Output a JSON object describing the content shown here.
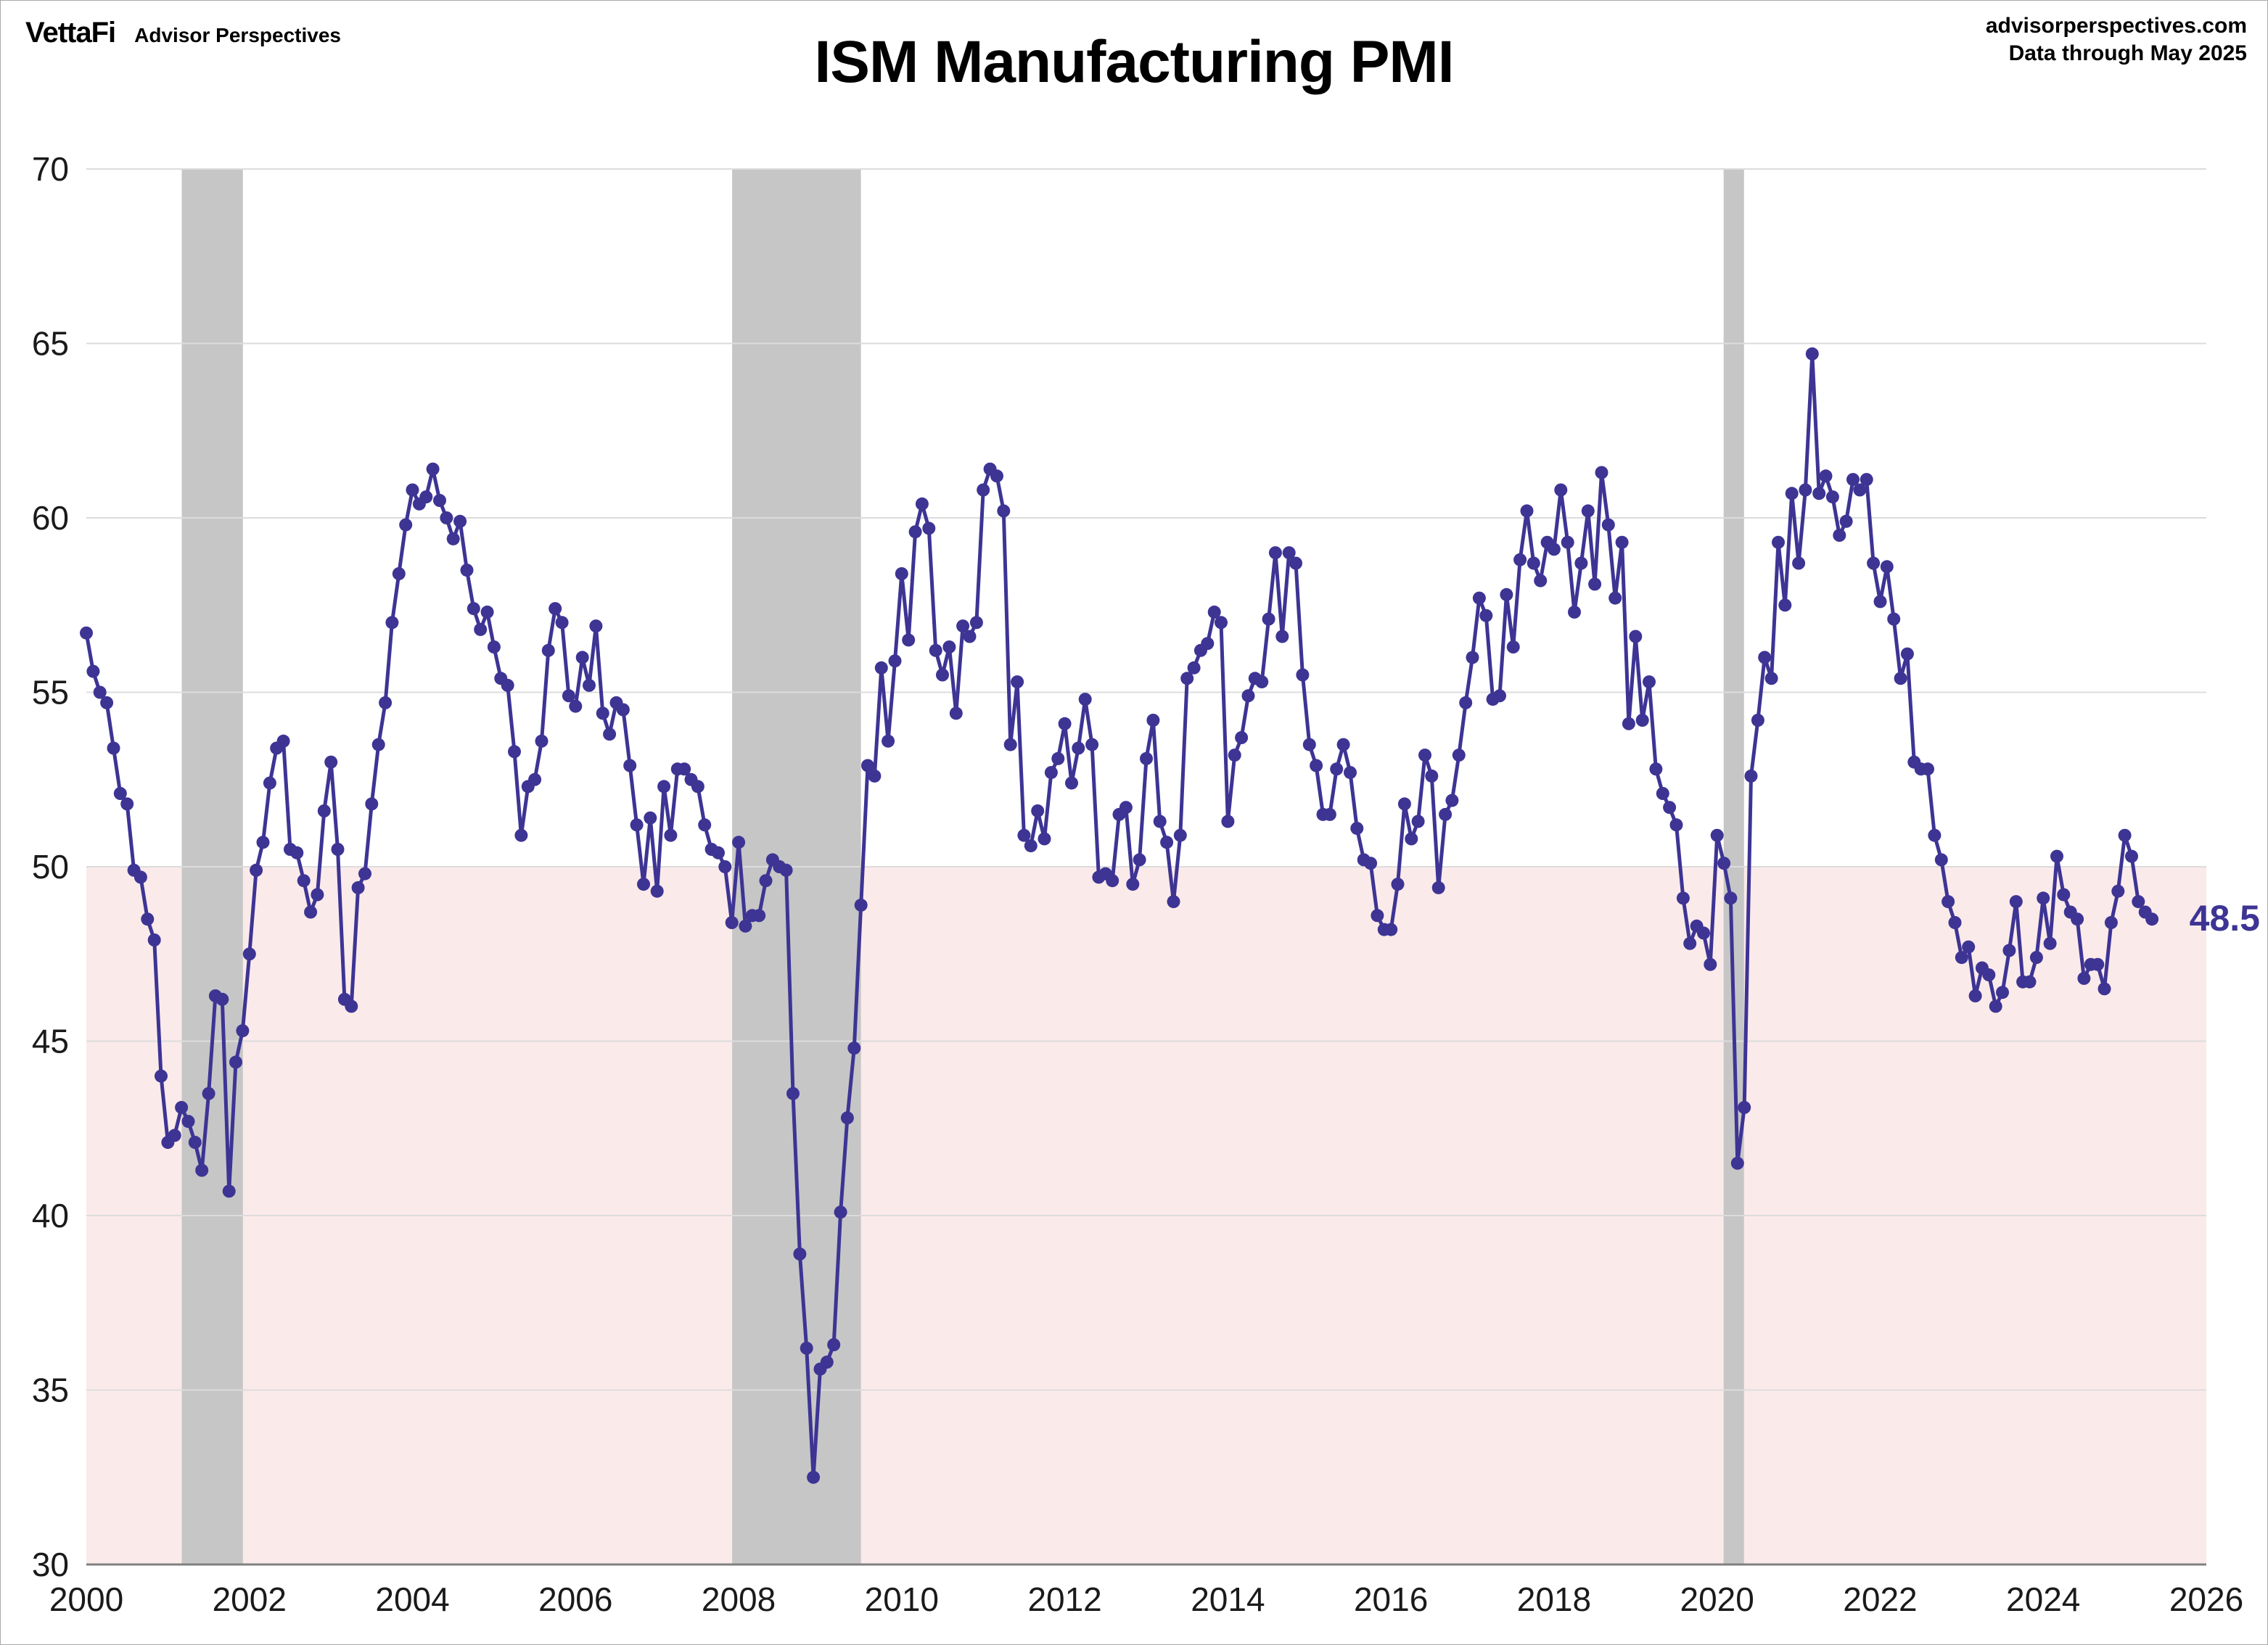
{
  "header": {
    "logo_primary": "VettaFi",
    "logo_secondary": "Advisor Perspectives",
    "source_line1": "advisorperspectives.com",
    "source_line2": "Data through May 2025"
  },
  "chart_data": {
    "type": "line",
    "title": "ISM Manufacturing PMI",
    "series_name": "ISM Manufacturing PMI",
    "frequency": "monthly",
    "start_year": 2000,
    "start_month": 1,
    "end_label": "May 2025",
    "last_value_label": "48.5",
    "xlim": [
      2000,
      2026
    ],
    "ylim": [
      30,
      70
    ],
    "x_ticks": [
      2000,
      2002,
      2004,
      2006,
      2008,
      2010,
      2012,
      2014,
      2016,
      2018,
      2020,
      2022,
      2024,
      2026
    ],
    "y_ticks": [
      30,
      35,
      40,
      45,
      50,
      55,
      60,
      65,
      70
    ],
    "grid": "horizontal-only",
    "legend_position": "none",
    "expansion_threshold": 50,
    "recessions": [
      {
        "start": 2001.17,
        "end": 2001.92
      },
      {
        "start": 2007.92,
        "end": 2009.5
      },
      {
        "start": 2020.08,
        "end": 2020.33
      }
    ],
    "colors": {
      "line": "#3d3494",
      "marker": "#3d3494",
      "below_50_fill": "#fbeaea",
      "recession": "#c6c6c6",
      "grid": "#dcdcdc",
      "axis": "#808080",
      "tick_text": "#1a1a1a",
      "value_label": "#3d3494"
    },
    "values": [
      56.7,
      55.6,
      55.0,
      54.7,
      53.4,
      52.1,
      51.8,
      49.9,
      49.7,
      48.5,
      47.9,
      44.0,
      42.1,
      42.3,
      43.1,
      42.7,
      42.1,
      41.3,
      43.5,
      46.3,
      46.2,
      40.7,
      44.4,
      45.3,
      47.5,
      49.9,
      50.7,
      52.4,
      53.4,
      53.6,
      50.5,
      50.4,
      49.6,
      48.7,
      49.2,
      51.6,
      53.0,
      50.5,
      46.2,
      46.0,
      49.4,
      49.8,
      51.8,
      53.5,
      54.7,
      57.0,
      58.4,
      59.8,
      60.8,
      60.4,
      60.6,
      61.4,
      60.5,
      60.0,
      59.4,
      59.9,
      58.5,
      57.4,
      56.8,
      57.3,
      56.3,
      55.4,
      55.2,
      53.3,
      50.9,
      52.3,
      52.5,
      53.6,
      56.2,
      57.4,
      57.0,
      54.9,
      54.6,
      56.0,
      55.2,
      56.9,
      54.4,
      53.8,
      54.7,
      54.5,
      52.9,
      51.2,
      49.5,
      51.4,
      49.3,
      52.3,
      50.9,
      52.8,
      52.8,
      52.5,
      52.3,
      51.2,
      50.5,
      50.4,
      50.0,
      48.4,
      50.7,
      48.3,
      48.6,
      48.6,
      49.6,
      50.2,
      50.0,
      49.9,
      43.5,
      38.9,
      36.2,
      32.5,
      35.6,
      35.8,
      36.3,
      40.1,
      42.8,
      44.8,
      48.9,
      52.9,
      52.6,
      55.7,
      53.6,
      55.9,
      58.4,
      56.5,
      59.6,
      60.4,
      59.7,
      56.2,
      55.5,
      56.3,
      54.4,
      56.9,
      56.6,
      57.0,
      60.8,
      61.4,
      61.2,
      60.2,
      53.5,
      55.3,
      50.9,
      50.6,
      51.6,
      50.8,
      52.7,
      53.1,
      54.1,
      52.4,
      53.4,
      54.8,
      53.5,
      49.7,
      49.8,
      49.6,
      51.5,
      51.7,
      49.5,
      50.2,
      53.1,
      54.2,
      51.3,
      50.7,
      49.0,
      50.9,
      55.4,
      55.7,
      56.2,
      56.4,
      57.3,
      57.0,
      51.3,
      53.2,
      53.7,
      54.9,
      55.4,
      55.3,
      57.1,
      59.0,
      56.6,
      59.0,
      58.7,
      55.5,
      53.5,
      52.9,
      51.5,
      51.5,
      52.8,
      53.5,
      52.7,
      51.1,
      50.2,
      50.1,
      48.6,
      48.2,
      48.2,
      49.5,
      51.8,
      50.8,
      51.3,
      53.2,
      52.6,
      49.4,
      51.5,
      51.9,
      53.2,
      54.7,
      56.0,
      57.7,
      57.2,
      54.8,
      54.9,
      57.8,
      56.3,
      58.8,
      60.2,
      58.7,
      58.2,
      59.3,
      59.1,
      60.8,
      59.3,
      57.3,
      58.7,
      60.2,
      58.1,
      61.3,
      59.8,
      57.7,
      59.3,
      54.1,
      56.6,
      54.2,
      55.3,
      52.8,
      52.1,
      51.7,
      51.2,
      49.1,
      47.8,
      48.3,
      48.1,
      47.2,
      50.9,
      50.1,
      49.1,
      41.5,
      43.1,
      52.6,
      54.2,
      56.0,
      55.4,
      59.3,
      57.5,
      60.7,
      58.7,
      60.8,
      64.7,
      60.7,
      61.2,
      60.6,
      59.5,
      59.9,
      61.1,
      60.8,
      61.1,
      58.7,
      57.6,
      58.6,
      57.1,
      55.4,
      56.1,
      53.0,
      52.8,
      52.8,
      50.9,
      50.2,
      49.0,
      48.4,
      47.4,
      47.7,
      46.3,
      47.1,
      46.9,
      46.0,
      46.4,
      47.6,
      49.0,
      46.7,
      46.7,
      47.4,
      49.1,
      47.8,
      50.3,
      49.2,
      48.7,
      48.5,
      46.8,
      47.2,
      47.2,
      46.5,
      48.4,
      49.3,
      50.9,
      50.3,
      49.0,
      48.7,
      48.5
    ]
  }
}
